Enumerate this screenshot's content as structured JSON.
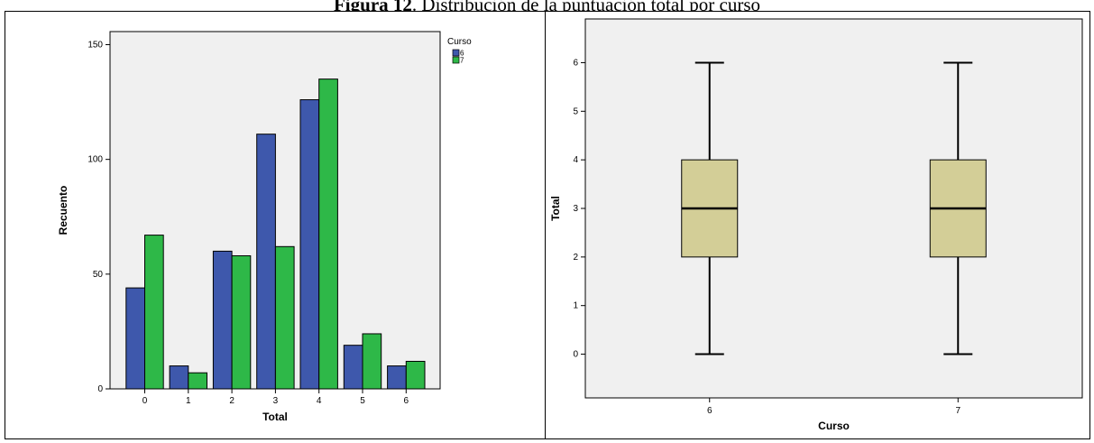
{
  "caption": {
    "label": "Figura 12",
    "text": ". Distribución de la puntuación total por curso"
  },
  "colors": {
    "plot_bg": "#f0f0f0",
    "series_6": "#3e58ac",
    "series_7": "#2eb848",
    "box_fill": "#d3ce97"
  },
  "chart_data": [
    {
      "type": "bar",
      "xlabel": "Total",
      "ylabel": "Recuento",
      "categories": [
        "0",
        "1",
        "2",
        "3",
        "4",
        "5",
        "6"
      ],
      "ylim": [
        0,
        150
      ],
      "yticks": [
        0,
        50,
        100,
        150
      ],
      "legend": {
        "title": "Curso",
        "position": "top-right"
      },
      "series": [
        {
          "name": "6",
          "values": [
            44,
            10,
            60,
            111,
            126,
            19,
            10
          ]
        },
        {
          "name": "7",
          "values": [
            67,
            7,
            58,
            62,
            135,
            24,
            12
          ]
        }
      ]
    },
    {
      "type": "box",
      "xlabel": "Curso",
      "ylabel": "Total",
      "categories": [
        "6",
        "7"
      ],
      "ylim": [
        -0.9,
        6.9
      ],
      "yticks": [
        0,
        1,
        2,
        3,
        4,
        5,
        6
      ],
      "boxes": [
        {
          "category": "6",
          "min": 0,
          "q1": 2,
          "median": 3,
          "q3": 4,
          "max": 6
        },
        {
          "category": "7",
          "min": 0,
          "q1": 2,
          "median": 3,
          "q3": 4,
          "max": 6
        }
      ]
    }
  ]
}
